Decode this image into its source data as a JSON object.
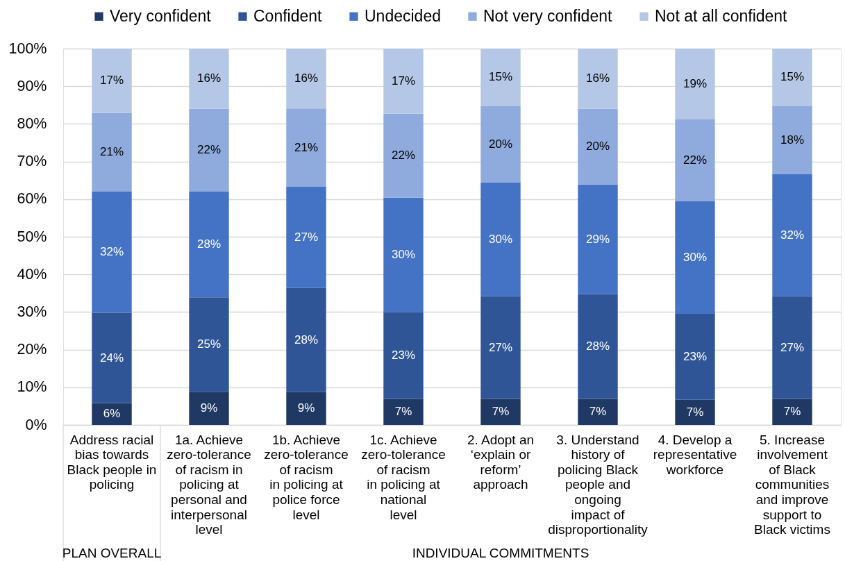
{
  "chart_data": {
    "type": "bar",
    "stacked": true,
    "categories": [
      "Address racial\nbias towards\nBlack people in\npolicing",
      "1a. Achieve\nzero-tolerance\nof racism in\npolicing at\npersonal and\ninterpersonal\nlevel",
      "1b. Achieve\nzero-tolerance\nof racism\nin policing at\npolice force\nlevel",
      "1c. Achieve\nzero-tolerance\nof racism\nin policing at\nnational\nlevel",
      "2. Adopt an\n‘explain or\nreform’\napproach",
      "3. Understand\nhistory of\npolicing Black\npeople and\nongoing\nimpact of\ndisproportionality",
      "4. Develop a\nrepresentative\nworkforce",
      "5. Increase\ninvolvement\nof Black\ncommunities\nand improve\nsupport to\nBlack victims"
    ],
    "series": [
      {
        "name": "Very confident",
        "color": "#1f3864",
        "values": [
          5.8,
          8.8,
          8.7,
          6.9,
          6.9,
          6.9,
          6.7,
          6.9
        ],
        "value_labels": [
          "6%",
          "9%",
          "9%",
          "7%",
          "7%",
          "7%",
          "7%",
          "7%"
        ]
      },
      {
        "name": "Confident",
        "color": "#2f5597",
        "values": [
          24.0,
          25.1,
          27.7,
          23.1,
          27.3,
          27.9,
          22.8,
          27.3
        ],
        "value_labels": [
          "24%",
          "25%",
          "28%",
          "23%",
          "27%",
          "28%",
          "23%",
          "27%"
        ]
      },
      {
        "name": "Undecided",
        "color": "#4472c4",
        "values": [
          32.2,
          28.1,
          26.9,
          30.4,
          30.3,
          29.1,
          29.9,
          32.4
        ],
        "value_labels": [
          "32%",
          "28%",
          "27%",
          "30%",
          "30%",
          "29%",
          "30%",
          "32%"
        ]
      },
      {
        "name": "Not very confident",
        "color": "#8faadc",
        "values": [
          20.9,
          22.0,
          20.8,
          22.3,
          20.2,
          20.1,
          21.8,
          18.1
        ],
        "value_labels": [
          "21%",
          "22%",
          "21%",
          "22%",
          "20%",
          "20%",
          "22%",
          "18%"
        ]
      },
      {
        "name": "Not at all confident",
        "color": "#b4c7e7",
        "values": [
          17.1,
          16.0,
          15.9,
          17.3,
          15.3,
          16.0,
          18.8,
          15.3
        ],
        "value_labels": [
          "17%",
          "16%",
          "16%",
          "17%",
          "15%",
          "16%",
          "19%",
          "15%"
        ]
      }
    ],
    "ylim": [
      0,
      100
    ],
    "yticks": [
      {
        "value": 0,
        "label": "0%"
      },
      {
        "value": 10,
        "label": "10%"
      },
      {
        "value": 20,
        "label": "20%"
      },
      {
        "value": 30,
        "label": "30%"
      },
      {
        "value": 40,
        "label": "40%"
      },
      {
        "value": 50,
        "label": "50%"
      },
      {
        "value": 60,
        "label": "60%"
      },
      {
        "value": 70,
        "label": "70%"
      },
      {
        "value": 80,
        "label": "80%"
      },
      {
        "value": 90,
        "label": "90%"
      },
      {
        "value": 100,
        "label": "100%"
      }
    ],
    "grid": "y",
    "legend": "top",
    "annotations": [
      "PLAN OVERALL",
      "INDIVIDUAL COMMITMENTS"
    ]
  }
}
